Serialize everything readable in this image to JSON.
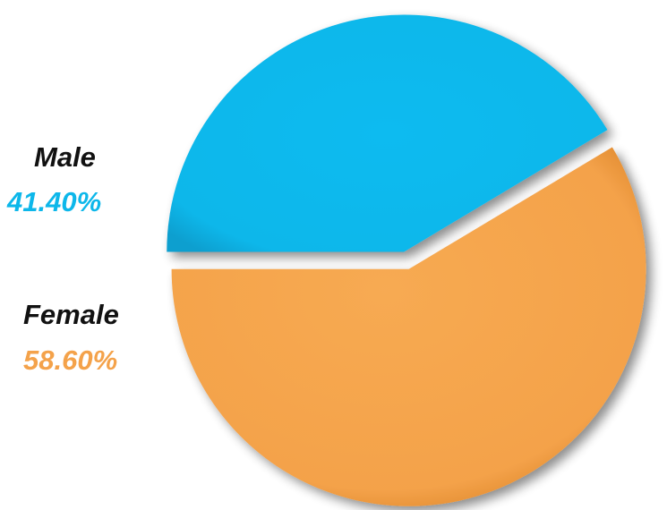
{
  "chart_data": {
    "type": "pie",
    "slices": [
      {
        "label": "Male",
        "value": 41.4,
        "value_label": "41.40%",
        "color": "#0db7ea"
      },
      {
        "label": "Female",
        "value": 58.6,
        "value_label": "58.60%",
        "color": "#f4a24a"
      }
    ],
    "exploded": true
  }
}
